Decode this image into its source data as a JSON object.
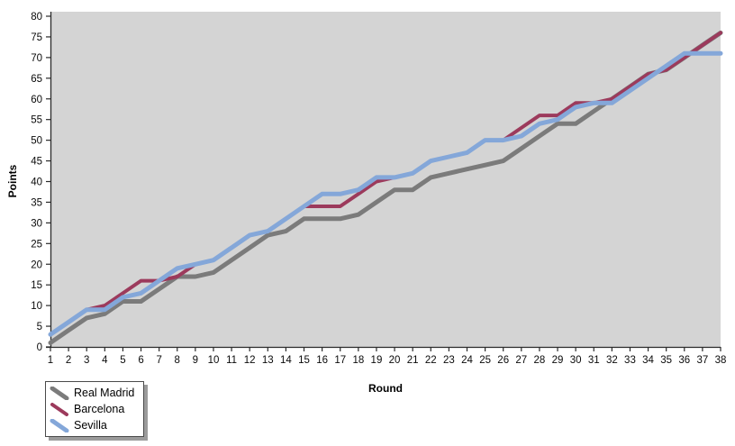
{
  "chart_data": {
    "type": "line",
    "title": "",
    "xlabel": "Round",
    "ylabel": "Points",
    "x": [
      1,
      2,
      3,
      4,
      5,
      6,
      7,
      8,
      9,
      10,
      11,
      12,
      13,
      14,
      15,
      16,
      17,
      18,
      19,
      20,
      21,
      22,
      23,
      24,
      25,
      26,
      27,
      28,
      29,
      30,
      31,
      32,
      33,
      34,
      35,
      36,
      37,
      38
    ],
    "xlim": [
      1,
      38
    ],
    "ylim": [
      0,
      80
    ],
    "ytick_step": 5,
    "grid": false,
    "legend_position": "bottom-left",
    "plot_bg": "#d4d4d4",
    "axis_color": "#2b2b2b",
    "tick_label_color": "#0a0a0a",
    "series": [
      {
        "name": "Real Madrid",
        "color": "#7b7b7b",
        "stroke_width": 5,
        "values": [
          1,
          4,
          7,
          8,
          11,
          11,
          14,
          17,
          17,
          18,
          21,
          24,
          27,
          28,
          31,
          31,
          31,
          32,
          35,
          38,
          38,
          41,
          42,
          43,
          44,
          45,
          48,
          51,
          54,
          54,
          57,
          60,
          63,
          66,
          67,
          70,
          73,
          76
        ]
      },
      {
        "name": "Barcelona",
        "color": "#9c3a5c",
        "stroke_width": 4,
        "values": [
          3,
          6,
          9,
          10,
          13,
          16,
          16,
          17,
          20,
          21,
          24,
          27,
          28,
          31,
          34,
          34,
          34,
          37,
          40,
          41,
          42,
          45,
          46,
          47,
          50,
          50,
          53,
          56,
          56,
          59,
          59,
          60,
          63,
          66,
          67,
          70,
          73,
          76
        ]
      },
      {
        "name": "Sevilla",
        "color": "#84a7d9",
        "stroke_width": 5,
        "values": [
          3,
          6,
          9,
          9,
          12,
          13,
          16,
          19,
          20,
          21,
          24,
          27,
          28,
          31,
          34,
          37,
          37,
          38,
          41,
          41,
          42,
          45,
          46,
          47,
          50,
          50,
          51,
          54,
          55,
          58,
          59,
          59,
          62,
          65,
          68,
          71,
          71,
          71
        ]
      }
    ]
  }
}
